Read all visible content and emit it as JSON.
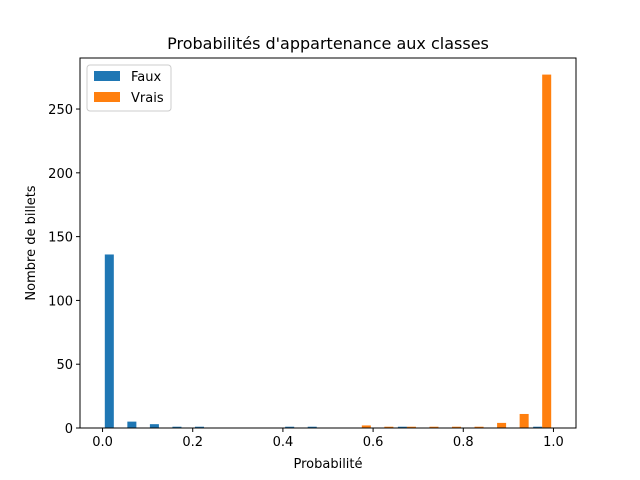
{
  "chart_data": {
    "type": "bar",
    "title": "Probabilités d'appartenance aux classes",
    "xlabel": "Probabilité",
    "ylabel": "Nombre de billets",
    "xlim": [
      -0.05,
      1.05
    ],
    "ylim": [
      0,
      290
    ],
    "xticks": [
      0.0,
      0.2,
      0.4,
      0.6,
      0.8,
      1.0
    ],
    "xtick_labels": [
      "0.0",
      "0.2",
      "0.4",
      "0.6",
      "0.8",
      "1.0"
    ],
    "yticks": [
      0,
      50,
      100,
      150,
      200,
      250
    ],
    "ytick_labels": [
      "0",
      "50",
      "100",
      "150",
      "200",
      "250"
    ],
    "legend_position": "top-left",
    "bin_edges": [
      0.0,
      0.05,
      0.1,
      0.15,
      0.2,
      0.25,
      0.3,
      0.35,
      0.4,
      0.45,
      0.5,
      0.55,
      0.6,
      0.65,
      0.7,
      0.75,
      0.8,
      0.85,
      0.9,
      0.95,
      1.0
    ],
    "series": [
      {
        "name": "Faux",
        "color": "#1f77b4",
        "values": [
          136,
          5,
          3,
          1,
          1,
          0,
          0,
          0,
          1,
          1,
          0,
          0,
          0,
          1,
          0,
          0,
          0,
          0,
          0,
          1
        ]
      },
      {
        "name": "Vrais",
        "color": "#ff7f0e",
        "values": [
          0,
          0,
          0,
          0,
          0,
          0,
          0,
          0,
          0,
          0,
          0,
          2,
          1,
          1,
          1,
          1,
          1,
          4,
          11,
          277
        ]
      }
    ]
  }
}
